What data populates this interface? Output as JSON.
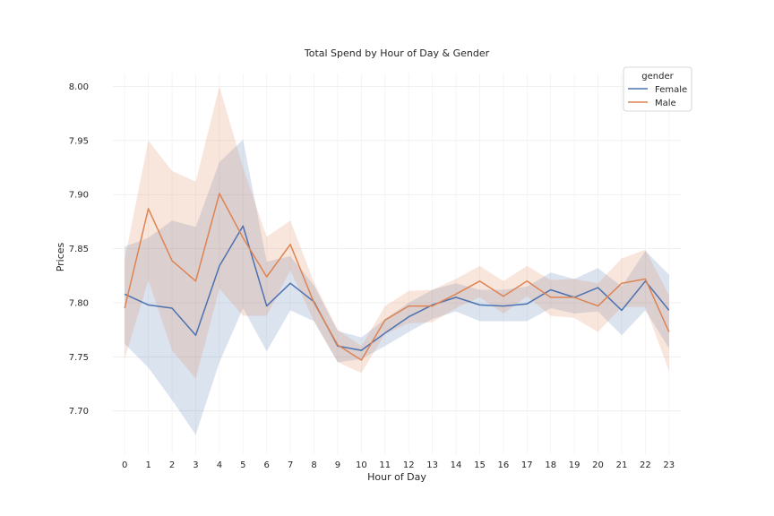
{
  "chart_data": {
    "type": "line",
    "title": "Total Spend by Hour of Day & Gender",
    "xlabel": "Hour of Day",
    "ylabel": "Prices",
    "x": [
      0,
      1,
      2,
      3,
      4,
      5,
      6,
      7,
      8,
      9,
      10,
      11,
      12,
      13,
      14,
      15,
      16,
      17,
      18,
      19,
      20,
      21,
      22,
      23
    ],
    "xlim": [
      -0.5,
      23.5
    ],
    "ylim": [
      7.66,
      8.012
    ],
    "yticks": [
      7.7,
      7.75,
      7.8,
      7.85,
      7.9,
      7.95,
      8.0
    ],
    "ytick_labels": [
      "7.70",
      "7.75",
      "7.80",
      "7.85",
      "7.90",
      "7.95",
      "8.00"
    ],
    "grid": true,
    "legend": {
      "title": "gender",
      "placement": "top-right"
    },
    "series": [
      {
        "name": "Female",
        "color": "#4c72b0",
        "values": [
          7.808,
          7.798,
          7.795,
          7.77,
          7.834,
          7.871,
          7.797,
          7.818,
          7.801,
          7.76,
          7.756,
          7.772,
          7.787,
          7.798,
          7.805,
          7.798,
          7.797,
          7.799,
          7.812,
          7.805,
          7.814,
          7.793,
          7.82,
          7.793
        ],
        "ci_low": [
          7.762,
          7.74,
          7.71,
          7.678,
          7.745,
          7.795,
          7.755,
          7.793,
          7.783,
          7.745,
          7.748,
          7.76,
          7.773,
          7.785,
          7.792,
          7.783,
          7.783,
          7.783,
          7.795,
          7.79,
          7.792,
          7.77,
          7.793,
          7.758
        ],
        "ci_high": [
          7.852,
          7.86,
          7.876,
          7.87,
          7.93,
          7.951,
          7.838,
          7.843,
          7.816,
          7.774,
          7.768,
          7.785,
          7.8,
          7.812,
          7.818,
          7.812,
          7.812,
          7.815,
          7.828,
          7.822,
          7.832,
          7.815,
          7.848,
          7.826
        ]
      },
      {
        "name": "Male",
        "color": "#dd8452",
        "values": [
          7.795,
          7.887,
          7.839,
          7.82,
          7.901,
          7.86,
          7.824,
          7.854,
          7.8,
          7.761,
          7.747,
          7.784,
          7.797,
          7.797,
          7.808,
          7.82,
          7.806,
          7.82,
          7.805,
          7.805,
          7.797,
          7.818,
          7.822,
          7.773
        ],
        "ci_low": [
          7.748,
          7.821,
          7.756,
          7.73,
          7.813,
          7.788,
          7.788,
          7.83,
          7.783,
          7.745,
          7.735,
          7.771,
          7.781,
          7.782,
          7.795,
          7.805,
          7.79,
          7.806,
          7.788,
          7.786,
          7.773,
          7.796,
          7.796,
          7.737
        ],
        "ci_high": [
          7.84,
          7.95,
          7.922,
          7.912,
          8.0,
          7.925,
          7.861,
          7.876,
          7.819,
          7.775,
          7.76,
          7.797,
          7.811,
          7.812,
          7.822,
          7.834,
          7.82,
          7.834,
          7.821,
          7.822,
          7.818,
          7.841,
          7.849,
          7.807
        ]
      }
    ]
  }
}
